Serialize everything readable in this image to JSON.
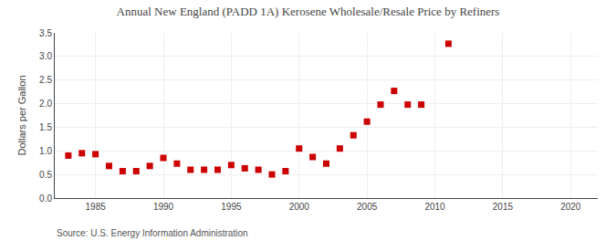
{
  "chart_data": {
    "type": "scatter",
    "title": "Annual New England (PADD 1A) Kerosene Wholesale/Resale Price by Refiners",
    "ylabel": "Dollars per Gallon",
    "annotations": [
      "Source: U.S. Energy Information Administration"
    ],
    "x": [
      1983,
      1984,
      1985,
      1986,
      1987,
      1988,
      1989,
      1990,
      1991,
      1992,
      1993,
      1994,
      1995,
      1996,
      1997,
      1998,
      1999,
      2000,
      2001,
      2002,
      2003,
      2004,
      2005,
      2006,
      2007,
      2008,
      2009,
      2011
    ],
    "values": [
      0.9,
      0.95,
      0.93,
      0.68,
      0.57,
      0.57,
      0.68,
      0.85,
      0.73,
      0.6,
      0.6,
      0.6,
      0.7,
      0.63,
      0.6,
      0.5,
      0.57,
      1.05,
      0.87,
      0.73,
      1.05,
      1.33,
      1.62,
      1.98,
      2.27,
      1.98,
      1.98,
      3.27
    ],
    "color": "#cc0000",
    "marker": "square",
    "xlim": [
      1982,
      2022
    ],
    "xticks": [
      1985,
      1990,
      1995,
      2000,
      2005,
      2010,
      2015,
      2020
    ],
    "ylim": [
      0.0,
      3.5
    ],
    "yticks": [
      {
        "value": 0.0,
        "label": "0.0"
      },
      0.5,
      {
        "value": 1.0,
        "label": "1.0"
      },
      1.5,
      {
        "value": 2.0,
        "label": "2.0"
      },
      2.5,
      {
        "value": 3.0,
        "label": "3.0"
      },
      3.5
    ],
    "grid": true
  }
}
